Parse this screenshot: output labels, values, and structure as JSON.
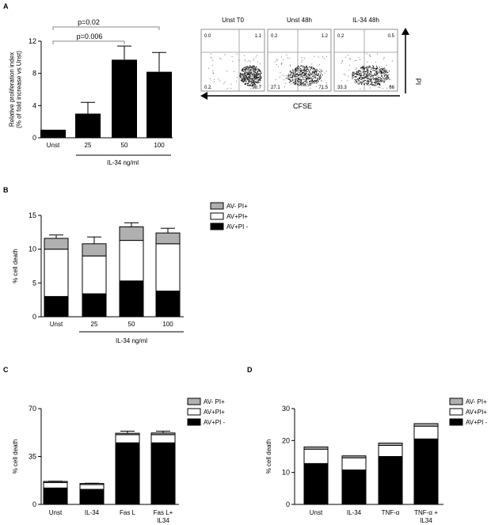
{
  "panels": {
    "a": "A",
    "b": "B",
    "c": "C",
    "d": "D"
  },
  "colors": {
    "bar": "#000000",
    "av_pi_neg": "#000000",
    "av_pi_pos": "#ffffff",
    "av_neg_pi_pos": "#b0b0b0"
  },
  "chart_data": [
    {
      "id": "A",
      "type": "bar",
      "categories": [
        "Unst",
        "25",
        "50",
        "100"
      ],
      "values": [
        1,
        3.0,
        9.7,
        8.2
      ],
      "errors": [
        0,
        1.4,
        1.7,
        2.4
      ],
      "ylabel_line1": "Relative proliferation index",
      "ylabel_line2": "(% of fold increase vs Unst)",
      "xgroup_label": "IL-34 ng/ml",
      "ylim": [
        0,
        12
      ],
      "yticks": [
        "0",
        "4",
        "8",
        "12"
      ],
      "annotations": [
        "p=0.02",
        "p=0.006"
      ]
    },
    {
      "id": "A-flow",
      "type": "scatter",
      "panels": [
        {
          "title": "Unst T0",
          "quadrants": [
            "0.0",
            "1.1",
            "0.2",
            "98.7"
          ]
        },
        {
          "title": "Unst 48h",
          "quadrants": [
            "0.2",
            "1.2",
            "27.1",
            "71.5"
          ]
        },
        {
          "title": "IL-34 48h",
          "quadrants": [
            "0.2",
            "0.5",
            "33.3",
            "66"
          ]
        }
      ],
      "xlabel": "CFSE",
      "ylabel": "PI"
    },
    {
      "id": "B",
      "type": "bar",
      "stacked": true,
      "categories": [
        "Unst",
        "25",
        "50",
        "100"
      ],
      "series": [
        {
          "name": "AV+PI -",
          "values": [
            3.0,
            3.4,
            5.3,
            3.8
          ],
          "errors": [
            2.8,
            3.4,
            3.1,
            3.8
          ]
        },
        {
          "name": "AV+PI+",
          "values": [
            7.0,
            5.6,
            6.0,
            7.0
          ],
          "errors": [
            1.2,
            0.0,
            0.3,
            0.4
          ]
        },
        {
          "name": "AV- PI+",
          "values": [
            1.6,
            1.8,
            2.0,
            1.6
          ],
          "errors": [
            0.5,
            1.0,
            0.6,
            0.7
          ]
        }
      ],
      "ylabel": "% cell death",
      "xgroup_label": "IL-34 ng/ml",
      "ylim": [
        0,
        15
      ],
      "yticks": [
        "0",
        "5",
        "10",
        "15"
      ]
    },
    {
      "id": "C",
      "type": "bar",
      "stacked": true,
      "categories": [
        "Unst",
        "IL-34",
        "Fas L",
        "Fas L+\nIL34"
      ],
      "series": [
        {
          "name": "AV+PI -",
          "values": [
            12,
            11,
            45,
            45
          ]
        },
        {
          "name": "AV+PI+",
          "values": [
            4,
            3.5,
            6,
            6
          ],
          "errors": [
            1,
            1,
            2.5,
            2.5
          ]
        },
        {
          "name": "AV- PI+",
          "values": [
            0.8,
            0.8,
            1.0,
            1.2
          ]
        }
      ],
      "ylabel": "% cell death",
      "ylim": [
        0,
        70
      ],
      "yticks": [
        "0",
        "35",
        "70"
      ]
    },
    {
      "id": "D",
      "type": "bar",
      "stacked": true,
      "categories": [
        "Unst",
        "IL-34",
        "TNF-α",
        "TNF-α +\nIL34"
      ],
      "series": [
        {
          "name": "AV+PI -",
          "values": [
            12.8,
            10.8,
            15.0,
            20.5
          ],
          "errors": [
            0.4,
            0.8,
            1.3,
            2.8
          ]
        },
        {
          "name": "AV+PI+",
          "values": [
            4.5,
            3.8,
            3.5,
            4.0
          ]
        },
        {
          "name": "AV- PI+",
          "values": [
            0.7,
            0.6,
            0.7,
            0.8
          ]
        }
      ],
      "ylabel": "% cell death",
      "ylim": [
        0,
        30
      ],
      "yticks": [
        "0",
        "10",
        "20",
        "30"
      ]
    }
  ]
}
